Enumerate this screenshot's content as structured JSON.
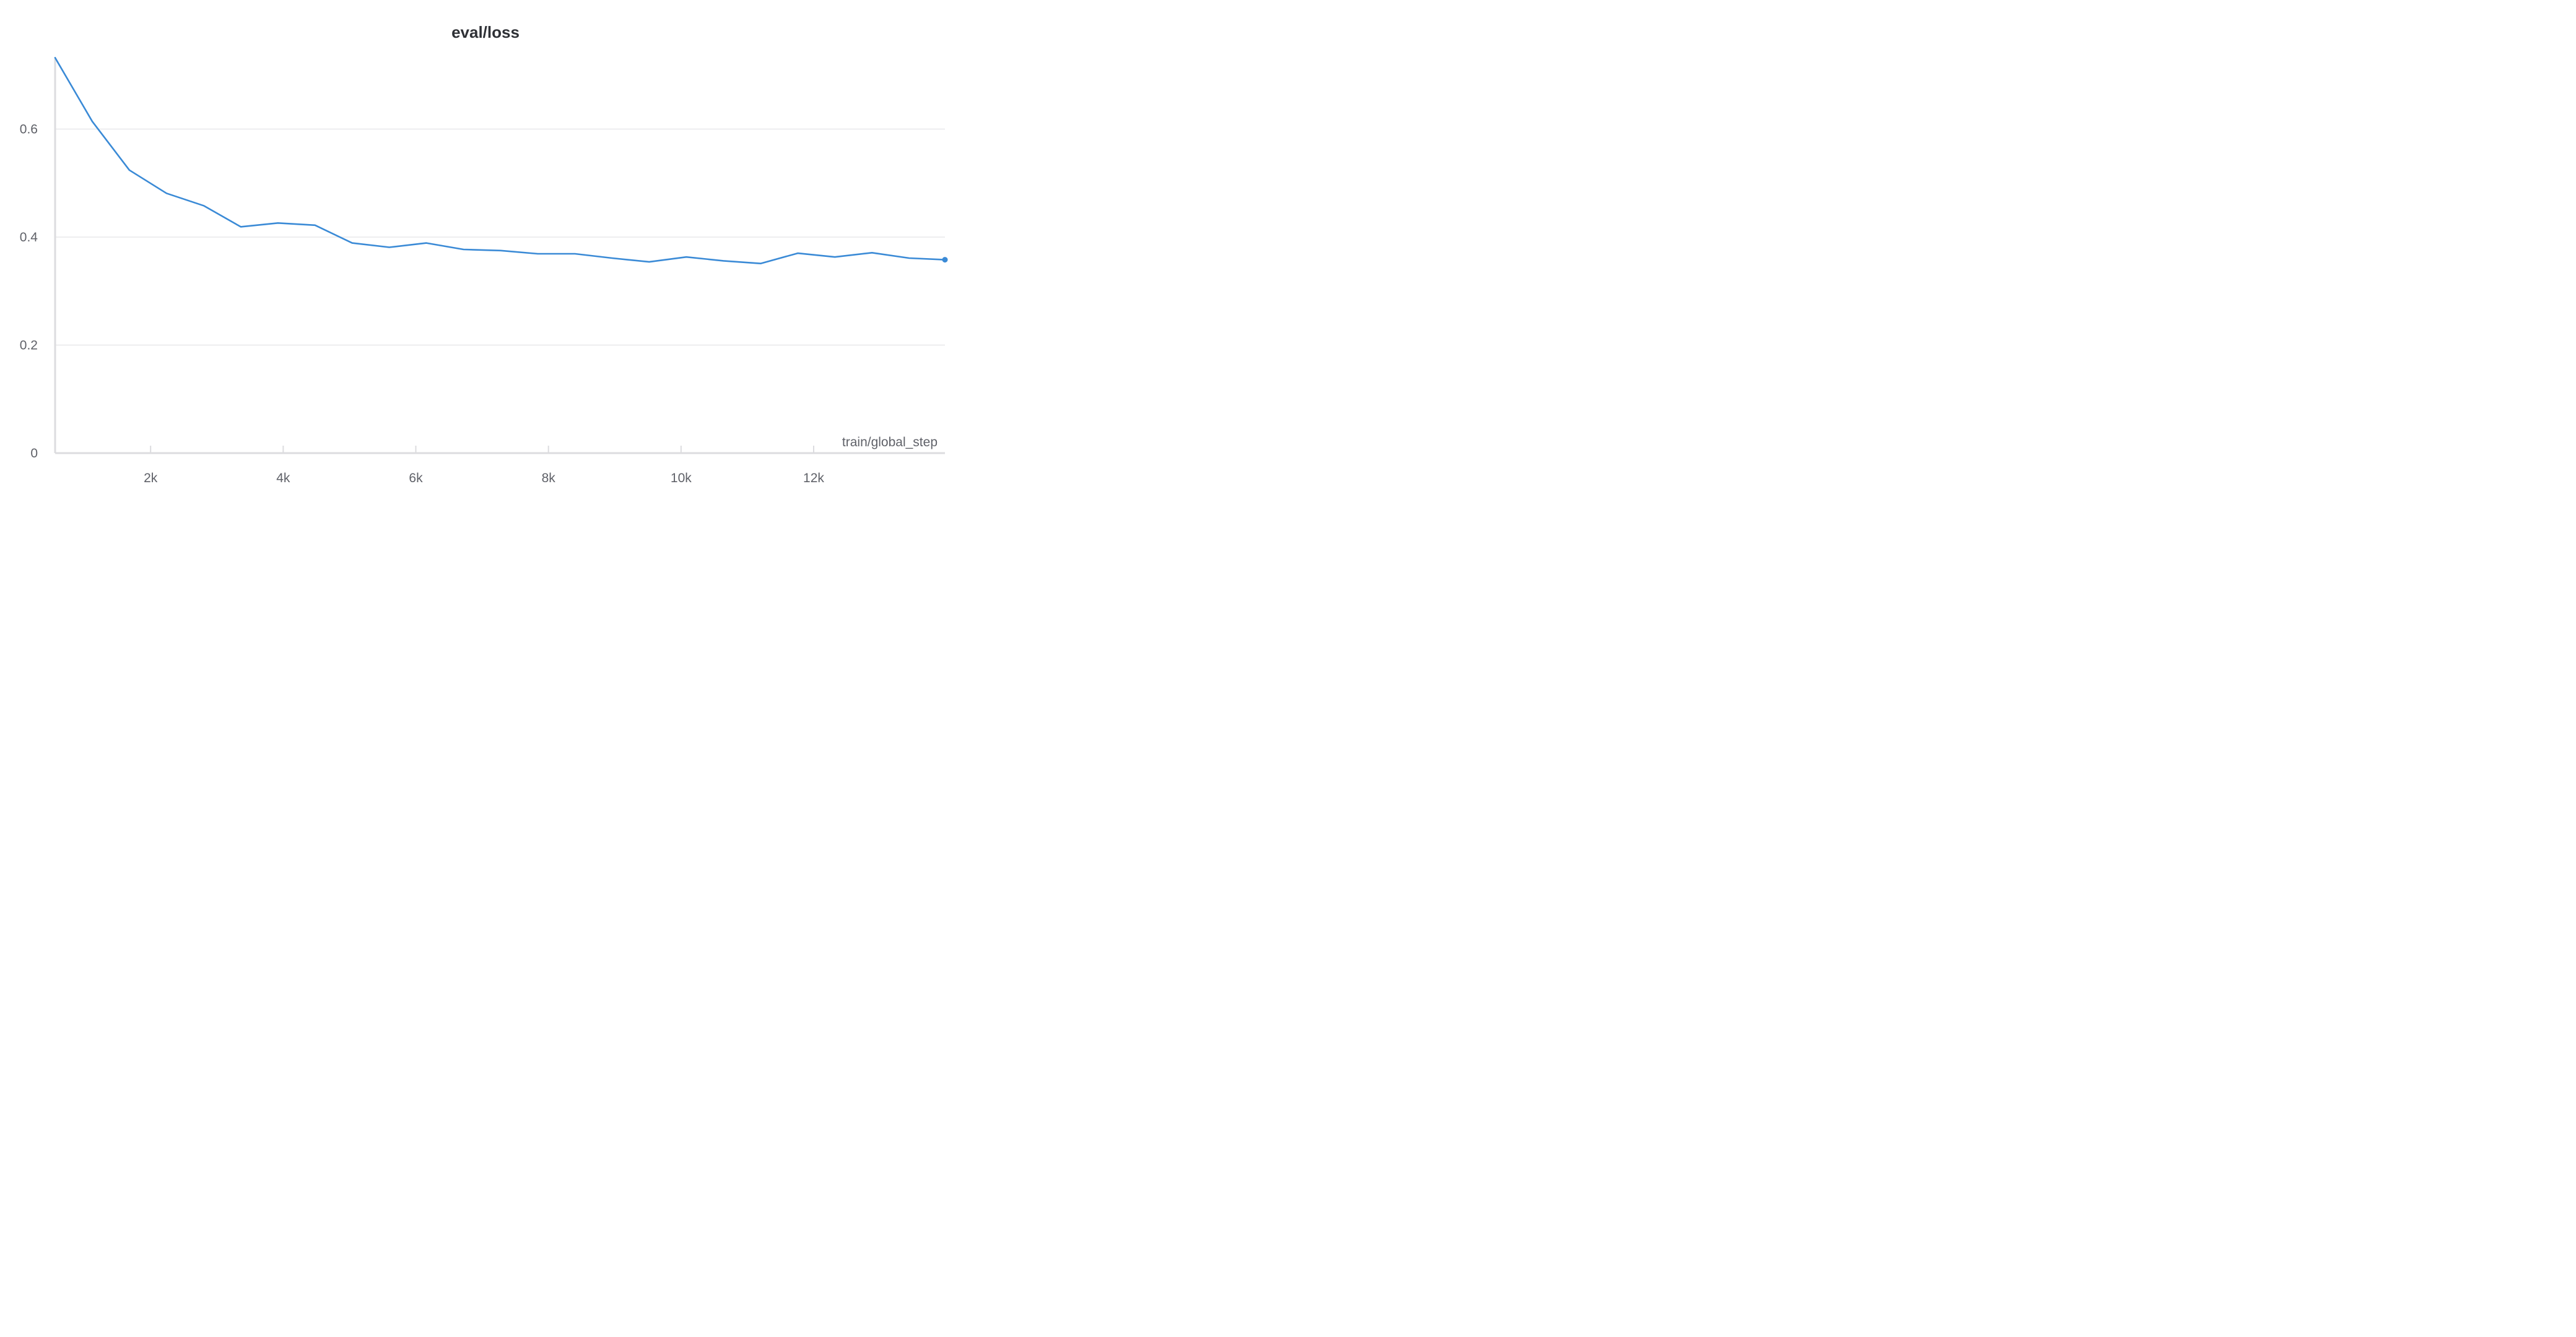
{
  "chart_data": {
    "type": "line",
    "title": "eval/loss",
    "xlabel": "train/global_step",
    "ylabel": "",
    "xlim": [
      560,
      13980
    ],
    "ylim": [
      0,
      0.73
    ],
    "x_ticks": [
      {
        "value": 2000,
        "label": "2k"
      },
      {
        "value": 4000,
        "label": "4k"
      },
      {
        "value": 6000,
        "label": "6k"
      },
      {
        "value": 8000,
        "label": "8k"
      },
      {
        "value": 10000,
        "label": "10k"
      },
      {
        "value": 12000,
        "label": "12k"
      }
    ],
    "y_ticks": [
      {
        "value": 0,
        "label": "0"
      },
      {
        "value": 0.2,
        "label": "0.2"
      },
      {
        "value": 0.4,
        "label": "0.4"
      },
      {
        "value": 0.6,
        "label": "0.6"
      }
    ],
    "grid": true,
    "legend": "none",
    "series": [
      {
        "color": "#3a8ad6",
        "x": [
          560,
          1120,
          1680,
          2240,
          2800,
          3360,
          3920,
          4480,
          5040,
          5600,
          6160,
          6720,
          7280,
          7840,
          8400,
          8960,
          9520,
          10080,
          10640,
          11200,
          11760,
          12320,
          12880,
          13440,
          13980
        ],
        "y": [
          0.732,
          0.614,
          0.524,
          0.481,
          0.458,
          0.419,
          0.426,
          0.422,
          0.389,
          0.381,
          0.389,
          0.377,
          0.375,
          0.369,
          0.369,
          0.361,
          0.354,
          0.363,
          0.356,
          0.351,
          0.37,
          0.363,
          0.371,
          0.361,
          0.358
        ]
      }
    ]
  }
}
